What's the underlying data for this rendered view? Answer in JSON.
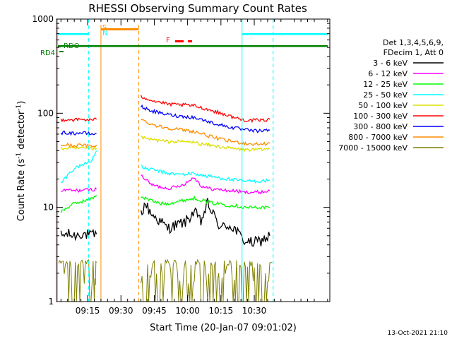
{
  "chart_data": {
    "type": "line",
    "title": "RHESSI Observing Summary Count Rates",
    "xlabel": "Start Time (20-Jan-07 09:01:02)",
    "ylabel": "Count Rate (s",
    "ylabel_sup": "-1",
    "ylabel_tail": " detector",
    "ylabel_tail_sup": "-1",
    "ylabel_end": ")",
    "yscale": "log",
    "ylim": [
      1,
      1000
    ],
    "xlim_min": [
      0,
      123
    ],
    "y_ticks": [
      {
        "value": 1,
        "label": "1"
      },
      {
        "value": 10,
        "label": "10"
      },
      {
        "value": 100,
        "label": "100"
      },
      {
        "value": 1000,
        "label": "1000"
      }
    ],
    "x_ticks": [
      {
        "min": 14,
        "label": "09:15"
      },
      {
        "min": 29,
        "label": "09:30"
      },
      {
        "min": 44,
        "label": "09:45"
      },
      {
        "min": 59,
        "label": "10:00"
      },
      {
        "min": 74,
        "label": "10:15"
      },
      {
        "min": 89,
        "label": "10:30"
      }
    ],
    "legend_header": [
      "Det 1,3,4,5,6,9,",
      "FDecim 1, Att 0"
    ],
    "series": [
      {
        "name": "3 - 6 keV",
        "color": "#000000",
        "segments": [
          {
            "x": [
              2,
              5,
              8,
              11,
              14,
              16,
              18
            ],
            "y": [
              5.0,
              5.2,
              5.0,
              5.3,
              5.1,
              5.0,
              5.2
            ]
          },
          {
            "x": [
              38,
              40,
              42,
              44,
              47,
              50,
              54,
              58,
              62,
              65,
              68,
              71,
              74,
              77,
              80,
              84,
              88,
              92,
              96
            ],
            "y": [
              8.5,
              11,
              9,
              8,
              7,
              6,
              6.5,
              7,
              9,
              7,
              11,
              8,
              6,
              6.5,
              6,
              4.5,
              4.2,
              4.4,
              5
            ]
          }
        ]
      },
      {
        "name": "6 - 12 keV",
        "color": "#ff00ff",
        "segments": [
          {
            "x": [
              2,
              5,
              8,
              11,
              14,
              16,
              18
            ],
            "y": [
              15,
              15.3,
              15,
              15.2,
              15.4,
              15.5,
              15.6
            ]
          },
          {
            "x": [
              38,
              40,
              42,
              44,
              47,
              50,
              54,
              58,
              62,
              65,
              68,
              71,
              74,
              77,
              80,
              84,
              88,
              92,
              96
            ],
            "y": [
              22,
              20,
              18,
              17,
              16.5,
              16,
              16.5,
              18,
              21,
              17,
              16,
              15.5,
              15.5,
              15,
              15,
              14.5,
              14.5,
              14.5,
              15
            ]
          }
        ]
      },
      {
        "name": "12 - 25 keV",
        "color": "#00ff00",
        "segments": [
          {
            "x": [
              2,
              5,
              8,
              11,
              14,
              16,
              18
            ],
            "y": [
              9,
              10,
              11,
              11.5,
              12,
              12.5,
              13.5
            ]
          },
          {
            "x": [
              38,
              40,
              42,
              44,
              47,
              50,
              54,
              58,
              62,
              65,
              68,
              71,
              74,
              77,
              80,
              84,
              88,
              92,
              96
            ],
            "y": [
              13,
              12.5,
              12,
              11.5,
              11,
              11,
              11.5,
              12,
              12.5,
              12,
              11.5,
              11,
              11,
              10.5,
              10.5,
              10,
              10,
              10,
              10
            ]
          }
        ]
      },
      {
        "name": "25 - 50 keV",
        "color": "#00ffff",
        "segments": [
          {
            "x": [
              2,
              5,
              8,
              11,
              14,
              16,
              18
            ],
            "y": [
              18,
              22,
              26,
              28,
              30,
              32,
              40
            ]
          },
          {
            "x": [
              38,
              40,
              42,
              44,
              47,
              50,
              54,
              58,
              62,
              65,
              68,
              71,
              74,
              77,
              80,
              84,
              88,
              92,
              96
            ],
            "y": [
              27,
              26,
              25.5,
              25,
              24,
              23,
              22.5,
              22.5,
              23,
              22,
              21.5,
              21,
              20.5,
              20,
              19.5,
              19,
              19,
              19,
              19.5
            ]
          }
        ]
      },
      {
        "name": "50 - 100 keV",
        "color": "#dddd00",
        "segments": [
          {
            "x": [
              2,
              5,
              8,
              11,
              14,
              16,
              18
            ],
            "y": [
              42,
              42.5,
              42,
              42.5,
              42,
              42,
              42.5
            ]
          },
          {
            "x": [
              38,
              40,
              42,
              44,
              47,
              50,
              54,
              58,
              62,
              65,
              68,
              71,
              74,
              77,
              80,
              84,
              88,
              92,
              96
            ],
            "y": [
              55,
              54,
              53,
              52,
              51,
              50,
              50,
              50,
              49,
              47,
              46,
              45,
              44,
              43,
              42,
              41,
              41,
              41,
              42
            ]
          }
        ]
      },
      {
        "name": "100 - 300 keV",
        "color": "#ff0000",
        "segments": [
          {
            "x": [
              2,
              5,
              8,
              11,
              14,
              16,
              18
            ],
            "y": [
              85,
              86,
              85,
              86,
              85,
              85,
              86
            ]
          },
          {
            "x": [
              38,
              40,
              42,
              44,
              47,
              50,
              54,
              58,
              62,
              65,
              68,
              71,
              74,
              77,
              80,
              84,
              88,
              92,
              96
            ],
            "y": [
              150,
              145,
              140,
              135,
              130,
              125,
              123,
              122,
              120,
              115,
              110,
              105,
              100,
              95,
              90,
              85,
              84,
              84,
              86
            ]
          }
        ]
      },
      {
        "name": "300 - 800 keV",
        "color": "#0000ff",
        "segments": [
          {
            "x": [
              2,
              5,
              8,
              11,
              14,
              16,
              18
            ],
            "y": [
              62,
              62,
              61,
              62,
              61,
              60,
              61
            ]
          },
          {
            "x": [
              38,
              40,
              42,
              44,
              47,
              50,
              54,
              58,
              62,
              65,
              68,
              71,
              74,
              77,
              80,
              84,
              88,
              92,
              96
            ],
            "y": [
              118,
              112,
              108,
              104,
              100,
              97,
              94,
              92,
              90,
              86,
              82,
              78,
              75,
              72,
              70,
              67,
              65,
              65,
              66
            ]
          }
        ]
      },
      {
        "name": "800 - 7000 keV",
        "color": "#ff8c00",
        "segments": [
          {
            "x": [
              2,
              5,
              8,
              11,
              14,
              16,
              18
            ],
            "y": [
              46,
              46,
              45,
              46,
              45,
              45,
              46
            ]
          },
          {
            "x": [
              38,
              40,
              42,
              44,
              47,
              50,
              54,
              58,
              62,
              65,
              68,
              71,
              74,
              77,
              80,
              84,
              88,
              92,
              96
            ],
            "y": [
              85,
              82,
              78,
              75,
              72,
              70,
              68,
              66,
              64,
              61,
              58,
              55,
              53,
              51,
              50,
              48,
              47,
              47,
              48
            ]
          }
        ]
      },
      {
        "name": "7000 - 15000 keV",
        "color": "#808000",
        "segments": [
          {
            "x": [
              1,
              3,
              5,
              7,
              9,
              11,
              13,
              15,
              17,
              18
            ],
            "y": [
              2.5,
              1.4,
              2.5,
              1.2,
              2.6,
              1.4,
              2.5,
              1.3,
              2.5,
              2.6
            ]
          },
          {
            "x": [
              38,
              41,
              44,
              47,
              50,
              53,
              56,
              59,
              62,
              65,
              68,
              71,
              74,
              77,
              80,
              83,
              86,
              89,
              92,
              95,
              97
            ],
            "y": [
              2.5,
              1.3,
              2.5,
              1.3,
              2.5,
              1.4,
              2.6,
              1.3,
              2.5,
              1.4,
              2.6,
              1.3,
              2.6,
              1.5,
              2.6,
              1.4,
              2.5,
              1.3,
              2.5,
              1.4,
              2.6
            ]
          }
        ]
      }
    ],
    "flags": [
      {
        "label": "RD4",
        "color": "#008000"
      },
      {
        "label": "RDO",
        "color": "#008000"
      },
      {
        "label": "S",
        "color": "#ff8c00"
      },
      {
        "label": "N",
        "color": "#00ffff"
      },
      {
        "label": "F",
        "color": "#ff0000"
      }
    ]
  },
  "footer": {
    "timestamp": "13-Oct-2021 21:10"
  }
}
